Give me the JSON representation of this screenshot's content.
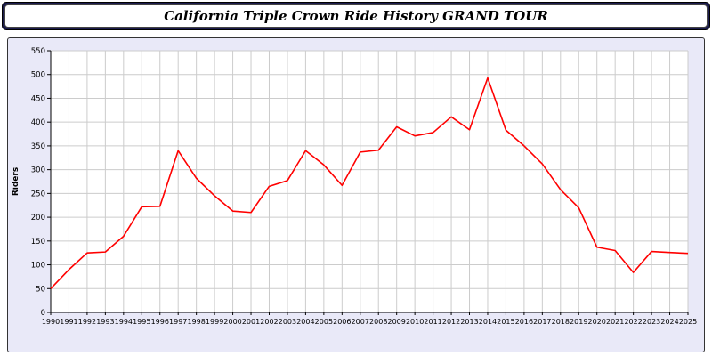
{
  "title": "California Triple Crown Ride History GRAND TOUR",
  "colors": {
    "line": "#ff0000",
    "panel_bg": "#e9e9f8",
    "titlebar_bg": "#1b1b4e",
    "grid": "#cccccc"
  },
  "chart_data": {
    "type": "line",
    "title": "California Triple Crown Ride History GRAND TOUR",
    "xlabel": "",
    "ylabel": "Riders",
    "ylim": [
      0,
      550
    ],
    "ytick_step": 50,
    "grid": true,
    "legend": "none",
    "x": [
      1990,
      1991,
      1992,
      1993,
      1994,
      1995,
      1996,
      1997,
      1998,
      1999,
      2000,
      2001,
      2002,
      2003,
      2004,
      2005,
      2006,
      2007,
      2008,
      2009,
      2010,
      2011,
      2012,
      2013,
      2014,
      2015,
      2016,
      2017,
      2018,
      2019,
      2020,
      2021,
      2022,
      2023,
      2024,
      2025
    ],
    "series": [
      {
        "name": "Riders",
        "color": "#ff0000",
        "values": [
          50,
          90,
          125,
          127,
          160,
          222,
          223,
          340,
          282,
          245,
          213,
          210,
          265,
          277,
          340,
          310,
          267,
          337,
          341,
          390,
          371,
          378,
          411,
          384,
          493,
          383,
          350,
          312,
          258,
          220,
          137,
          130,
          84,
          128,
          126,
          124
        ]
      }
    ]
  }
}
